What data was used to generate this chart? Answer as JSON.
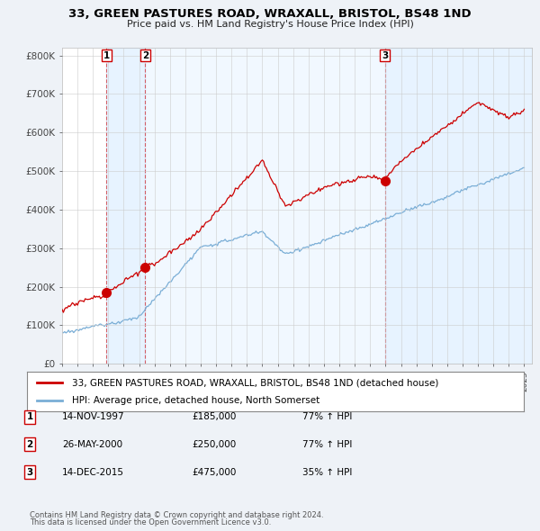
{
  "title": "33, GREEN PASTURES ROAD, WRAXALL, BRISTOL, BS48 1ND",
  "subtitle": "Price paid vs. HM Land Registry's House Price Index (HPI)",
  "legend_line1": "33, GREEN PASTURES ROAD, WRAXALL, BRISTOL, BS48 1ND (detached house)",
  "legend_line2": "HPI: Average price, detached house, North Somerset",
  "footer_line1": "Contains HM Land Registry data © Crown copyright and database right 2024.",
  "footer_line2": "This data is licensed under the Open Government Licence v3.0.",
  "transactions": [
    {
      "label": "1",
      "date": "14-NOV-1997",
      "price": "£185,000",
      "pct": "77% ↑ HPI",
      "year": 1997.87
    },
    {
      "label": "2",
      "date": "26-MAY-2000",
      "price": "£250,000",
      "pct": "77% ↑ HPI",
      "year": 2000.4
    },
    {
      "label": "3",
      "date": "14-DEC-2015",
      "price": "£475,000",
      "pct": "35% ↑ HPI",
      "year": 2015.95
    }
  ],
  "transaction_values": [
    185000,
    250000,
    475000
  ],
  "red_line_color": "#cc0000",
  "blue_line_color": "#7aaed6",
  "shade_color": "#ddeeff",
  "grid_color": "#cccccc",
  "bg_color": "#eef2f7",
  "plot_bg": "#ffffff",
  "ylim": [
    0,
    820000
  ],
  "yticks": [
    0,
    100000,
    200000,
    300000,
    400000,
    500000,
    600000,
    700000,
    800000
  ],
  "ytick_labels": [
    "£0",
    "£100K",
    "£200K",
    "£300K",
    "£400K",
    "£500K",
    "£600K",
    "£700K",
    "£800K"
  ]
}
